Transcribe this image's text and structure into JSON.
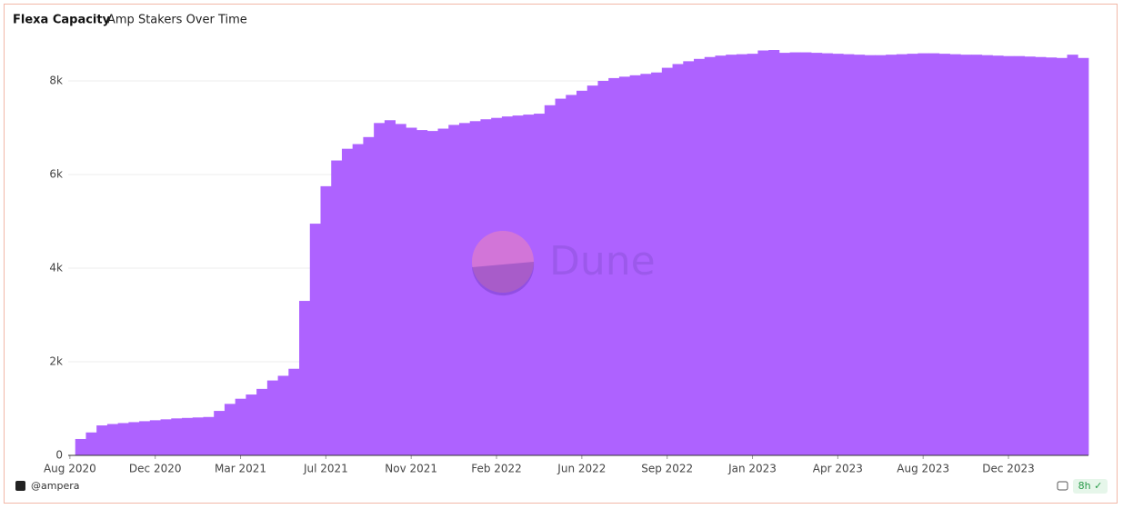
{
  "chart_data": {
    "type": "bar",
    "title": "Flexa Capacity",
    "subtitle": "Amp Stakers Over Time",
    "categories": [
      "Aug 2020",
      null,
      null,
      null,
      null,
      null,
      null,
      null,
      "Dec 2020",
      null,
      null,
      null,
      null,
      null,
      null,
      null,
      "Mar 2021",
      null,
      null,
      null,
      null,
      null,
      null,
      null,
      "Jul 2021",
      null,
      null,
      null,
      null,
      null,
      null,
      null,
      "Nov 2021",
      null,
      null,
      null,
      null,
      null,
      null,
      null,
      "Feb 2022",
      null,
      null,
      null,
      null,
      null,
      null,
      null,
      "Jun 2022",
      null,
      null,
      null,
      null,
      null,
      null,
      null,
      "Sep 2022",
      null,
      null,
      null,
      null,
      null,
      null,
      null,
      "Jan 2023",
      null,
      null,
      null,
      null,
      null,
      null,
      null,
      "Apr 2023",
      null,
      null,
      null,
      null,
      null,
      null,
      null,
      "Aug 2023",
      null,
      null,
      null,
      null,
      null,
      null,
      null,
      "Dec 2023",
      null,
      null,
      null,
      null,
      null,
      null,
      null
    ],
    "values": [
      null,
      350,
      490,
      640,
      670,
      690,
      710,
      730,
      750,
      770,
      790,
      800,
      810,
      820,
      950,
      1100,
      1210,
      1300,
      1420,
      1600,
      1700,
      1850,
      3300,
      4950,
      5750,
      6300,
      6550,
      6650,
      6800,
      7100,
      7160,
      7080,
      7000,
      6950,
      6930,
      6980,
      7060,
      7100,
      7140,
      7180,
      7210,
      7240,
      7260,
      7280,
      7300,
      7480,
      7620,
      7700,
      7790,
      7900,
      8000,
      8060,
      8090,
      8120,
      8150,
      8180,
      8280,
      8360,
      8420,
      8470,
      8510,
      8540,
      8560,
      8570,
      8580,
      8650,
      8660,
      8600,
      8610,
      8610,
      8600,
      8590,
      8580,
      8570,
      8560,
      8550,
      8550,
      8560,
      8570,
      8580,
      8590,
      8590,
      8580,
      8570,
      8560,
      8560,
      8550,
      8540,
      8530,
      8530,
      8520,
      8510,
      8500,
      8490,
      8560,
      8490
    ],
    "color": "#ae62ff",
    "ylim": [
      0,
      9000
    ],
    "yticks": [
      0,
      {
        "value": 2000,
        "label": "2k"
      },
      {
        "value": 4000,
        "label": "4k"
      },
      {
        "value": 6000,
        "label": "6k"
      },
      {
        "value": 8000,
        "label": "8k"
      }
    ],
    "grid": true,
    "watermark": "Dune"
  },
  "footer": {
    "author": "@ampera",
    "refresh": "8h"
  }
}
